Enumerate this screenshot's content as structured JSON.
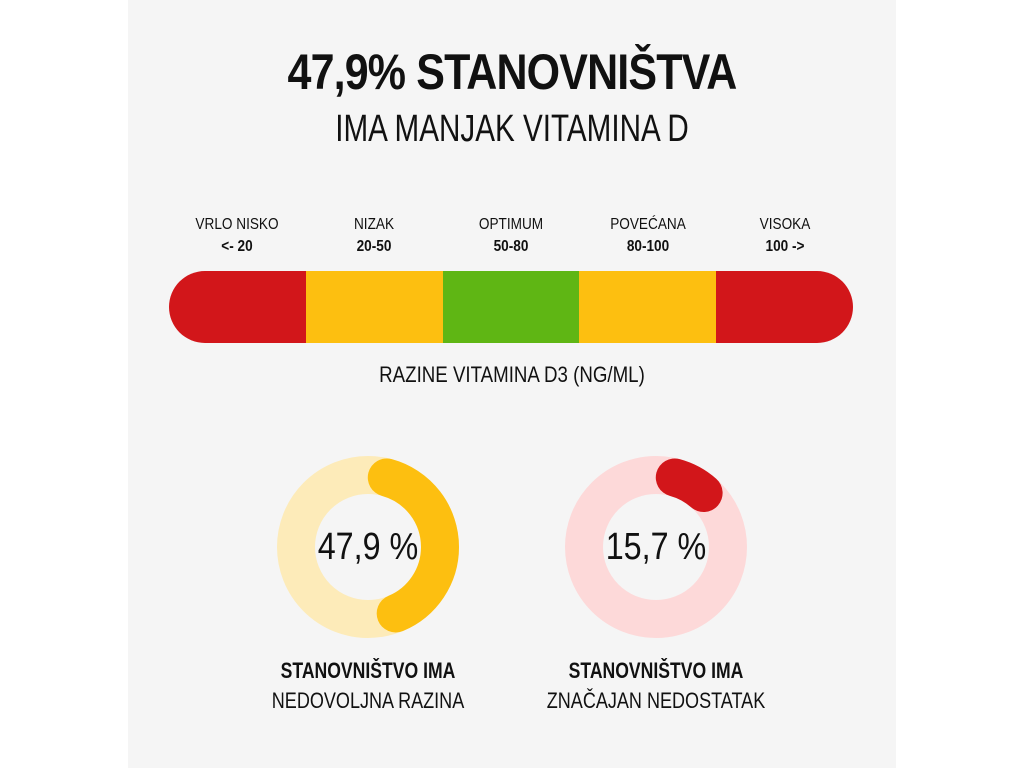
{
  "header": {
    "title": "47,9% STANOVNIŠTVA",
    "subtitle": "IMA MANJAK VITAMINA D"
  },
  "scale": {
    "levels": [
      {
        "name": "VRLO NISKO",
        "range": "<- 20",
        "color": "#d2161a"
      },
      {
        "name": "NIZAK",
        "range": "20-50",
        "color": "#fdbf10"
      },
      {
        "name": "OPTIMUM",
        "range": "50-80",
        "color": "#5fb614"
      },
      {
        "name": "POVEĆANA",
        "range": "80-100",
        "color": "#fdbf10"
      },
      {
        "name": "VISOKA",
        "range": "100 ->",
        "color": "#d2161a"
      }
    ],
    "axis_label": "RAZINE VITAMINA D3 (NG/ML)"
  },
  "stats": [
    {
      "value_text": "47,9 %",
      "value": 47.9,
      "caption_bold": "STANOVNIŠTVO IMA",
      "caption": "NEDOVOLJNA RAZINA",
      "color": "#fdbf10",
      "track_color": "#fdebb9"
    },
    {
      "value_text": "15,7 %",
      "value": 15.7,
      "caption_bold": "STANOVNIŠTVO IMA",
      "caption": "ZNAČAJAN NEDOSTATAK",
      "color": "#d2161a",
      "track_color": "#fdd9d9"
    }
  ]
}
